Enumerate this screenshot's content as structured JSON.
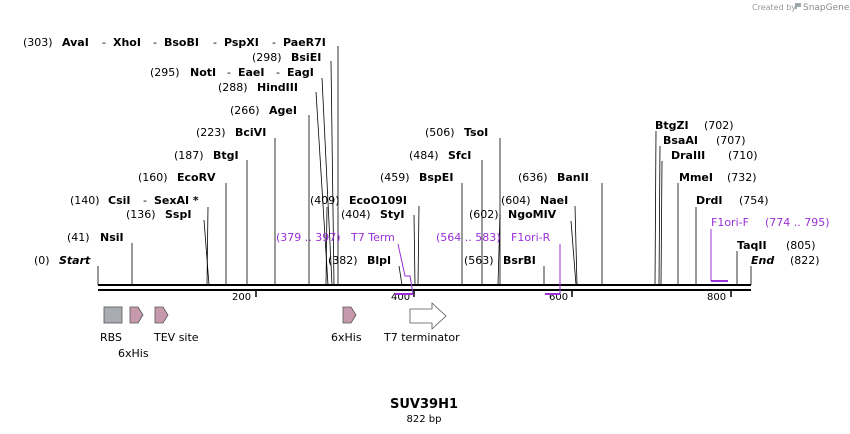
{
  "credit": {
    "prefix": "Created by",
    "brand": "SnapGene"
  },
  "sequence": {
    "name": "SUV39H1",
    "length_label": "822 bp",
    "length": 822
  },
  "ruler": {
    "ticks": [
      "200",
      "400",
      "600",
      "800"
    ]
  },
  "sites": {
    "start": {
      "pos": "(0)",
      "name": "Start"
    },
    "nsi": {
      "pos": "(41)",
      "name": "NsiI"
    },
    "csi": {
      "pos": "(140)",
      "name": "CsiI"
    },
    "sexai": {
      "name": "SexAI *"
    },
    "ssp": {
      "pos": "(136)",
      "name": "SspI"
    },
    "ecorv": {
      "pos": "(160)",
      "name": "EcoRV"
    },
    "btgi": {
      "pos": "(187)",
      "name": "BtgI"
    },
    "bcivi": {
      "pos": "(223)",
      "name": "BciVI"
    },
    "agei": {
      "pos": "(266)",
      "name": "AgeI"
    },
    "hindiii": {
      "pos": "(288)",
      "name": "HindIII"
    },
    "noti": {
      "pos": "(295)",
      "name": "NotI"
    },
    "eaei": {
      "name": "EaeI"
    },
    "eagi": {
      "name": "EagI"
    },
    "bsiei": {
      "pos": "(298)",
      "name": "BsiEI"
    },
    "avai": {
      "pos": "(303)",
      "name": "AvaI"
    },
    "xhoi": {
      "name": "XhoI"
    },
    "bsobi": {
      "name": "BsoBI"
    },
    "pspxi": {
      "name": "PspXI"
    },
    "paer7i": {
      "name": "PaeR7I"
    },
    "ecoo109i": {
      "pos": "(409)",
      "name": "EcoO109I"
    },
    "styi": {
      "pos": "(404)",
      "name": "StyI"
    },
    "blpi": {
      "pos": "(382)",
      "name": "BlpI"
    },
    "tsoi": {
      "pos": "(506)",
      "name": "TsoI"
    },
    "sfci": {
      "pos": "(484)",
      "name": "SfcI"
    },
    "bspei": {
      "pos": "(459)",
      "name": "BspEI"
    },
    "ngomiv": {
      "pos": "(602)",
      "name": "NgoMIV"
    },
    "naei": {
      "pos": "(604)",
      "name": "NaeI"
    },
    "banii": {
      "pos": "(636)",
      "name": "BanII"
    },
    "bsrbi": {
      "pos": "(563)",
      "name": "BsrBI"
    },
    "btgzi": {
      "pos": "(702)",
      "name": "BtgZI"
    },
    "bsaai": {
      "pos": "(707)",
      "name": "BsaAI"
    },
    "draiii": {
      "pos": "(710)",
      "name": "DraIII"
    },
    "mmei": {
      "pos": "(732)",
      "name": "MmeI"
    },
    "drdi": {
      "pos": "(754)",
      "name": "DrdI"
    },
    "taqii": {
      "pos": "(805)",
      "name": "TaqII"
    },
    "end": {
      "pos": "(822)",
      "name": "End"
    }
  },
  "primers": {
    "t7term": {
      "range": "(379 .. 397)",
      "name": "T7 Term"
    },
    "f1orir": {
      "range": "(564 .. 583)",
      "name": "F1ori-R"
    },
    "f1orif": {
      "name": "F1ori-F",
      "range": "(774 .. 795)"
    }
  },
  "features": {
    "rbs": "RBS",
    "his1": "6xHis",
    "tev": "TEV site",
    "his2": "6xHis",
    "t7": "T7 terminator"
  },
  "colors": {
    "primer": "#9b30d9",
    "rbs": "#a9adb1",
    "tag": "#c799ac",
    "terminator": "#ffffff",
    "backbone": "#000000"
  }
}
